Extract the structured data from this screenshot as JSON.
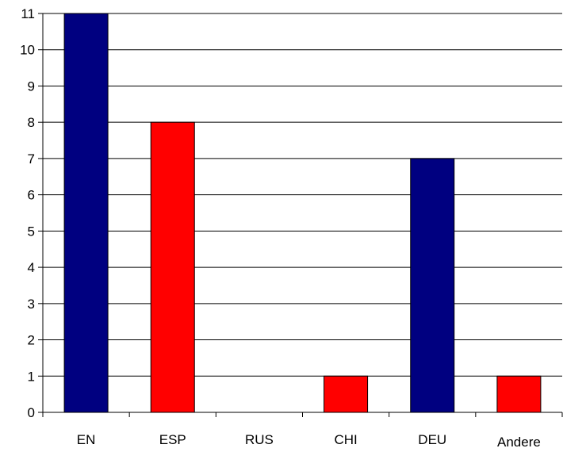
{
  "chart_data": {
    "type": "bar",
    "categories": [
      "EN",
      "ESP",
      "RUS",
      "CHI",
      "DEU",
      "Andere"
    ],
    "values": [
      11,
      8,
      0,
      1,
      7,
      1
    ],
    "bar_colors": [
      "#000080",
      "#ff0000",
      "#ff0000",
      "#ff0000",
      "#000080",
      "#ff0000"
    ],
    "ylim": [
      0,
      11
    ],
    "yticks": [
      0,
      1,
      2,
      3,
      4,
      5,
      6,
      7,
      8,
      9,
      10,
      11
    ],
    "grid": true,
    "legend": "none",
    "title": "",
    "xlabel": "",
    "ylabel": ""
  }
}
